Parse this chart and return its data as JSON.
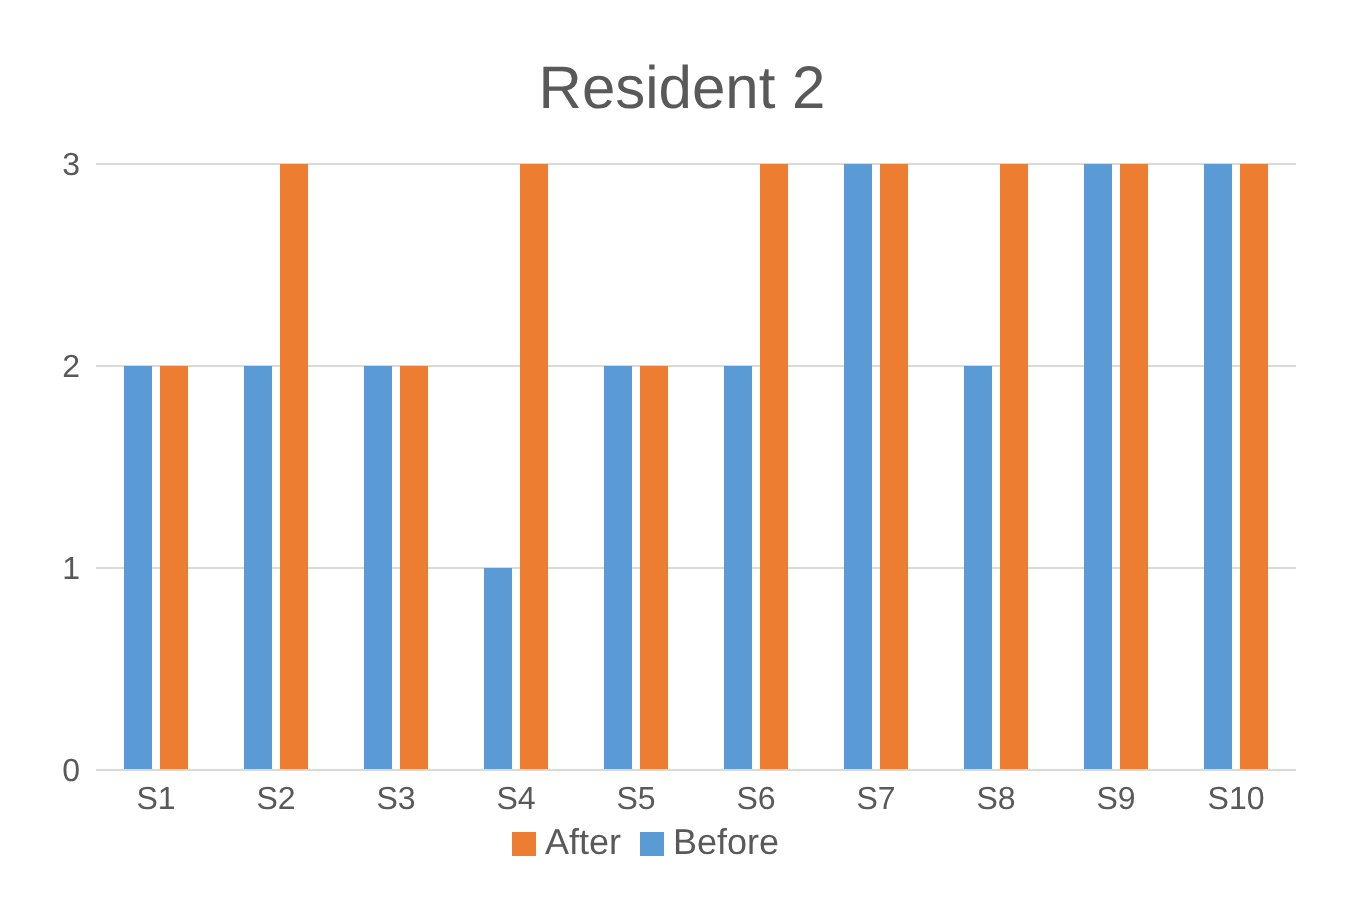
{
  "chart_data": {
    "type": "bar",
    "title": "Resident 2",
    "categories": [
      "S1",
      "S2",
      "S3",
      "S4",
      "S5",
      "S6",
      "S7",
      "S8",
      "S9",
      "S10"
    ],
    "series": [
      {
        "name": "Before",
        "color": "#5b9bd5",
        "values": [
          2,
          2,
          2,
          1,
          2,
          2,
          3,
          2,
          3,
          3
        ]
      },
      {
        "name": "After",
        "color": "#ed7d31",
        "values": [
          2,
          3,
          2,
          3,
          2,
          3,
          3,
          3,
          3,
          3
        ]
      }
    ],
    "ylim": [
      0,
      3
    ],
    "yticks": [
      0,
      1,
      2,
      3
    ],
    "grid": "y",
    "legend": "bottom"
  }
}
